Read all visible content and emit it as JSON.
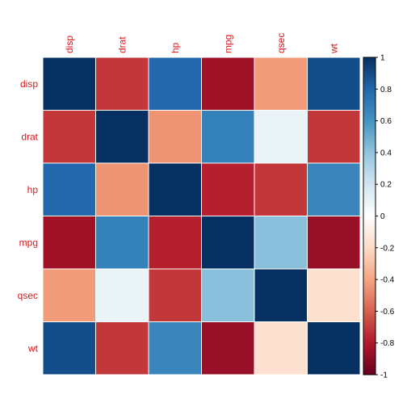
{
  "chart_data": {
    "type": "heatmap",
    "title": "",
    "variables": [
      "disp",
      "drat",
      "hp",
      "mpg",
      "qsec",
      "wt"
    ],
    "values": [
      [
        1.0,
        -0.71,
        0.79,
        -0.85,
        -0.43,
        0.89
      ],
      [
        -0.71,
        1.0,
        -0.45,
        0.68,
        0.09,
        -0.71
      ],
      [
        0.79,
        -0.45,
        1.0,
        -0.78,
        -0.71,
        0.66
      ],
      [
        -0.85,
        0.68,
        -0.78,
        1.0,
        0.42,
        -0.87
      ],
      [
        -0.43,
        0.09,
        -0.71,
        0.42,
        1.0,
        -0.17
      ],
      [
        0.89,
        -0.71,
        0.66,
        -0.87,
        -0.17,
        1.0
      ]
    ],
    "label_color": "#d7191c",
    "colorbar": {
      "range": [
        -1,
        1
      ],
      "ticks": [
        "1",
        "0.8",
        "0.6",
        "0.4",
        "0.2",
        "0",
        "-0.2",
        "-0.4",
        "-0.6",
        "-0.8",
        "-1"
      ],
      "stops": [
        "#67001f",
        "#b2182b",
        "#d6604d",
        "#f4a582",
        "#fddbc7",
        "#ffffff",
        "#d1e5f0",
        "#92c5de",
        "#4393c3",
        "#2166ac",
        "#053061"
      ]
    }
  }
}
